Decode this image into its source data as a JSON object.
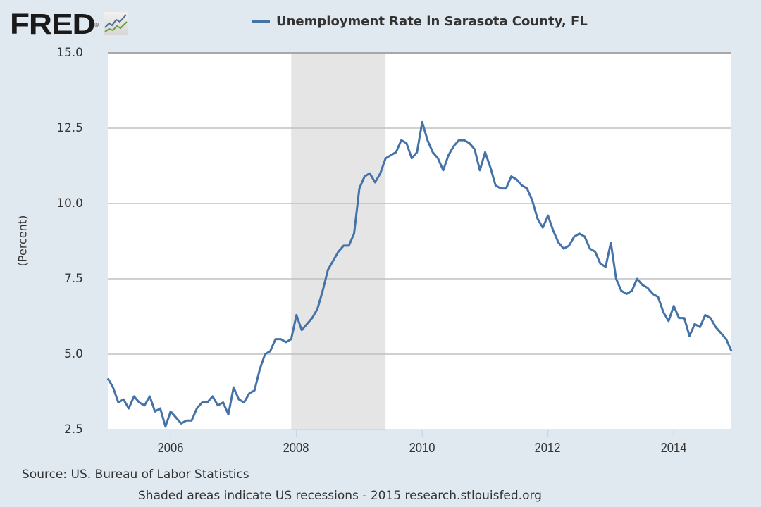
{
  "header": {
    "logo_text": "FRED",
    "logo_icon": "chart-line-icon",
    "legend_label": "Unemployment Rate in Sarasota County, FL",
    "legend_color": "#4572a7"
  },
  "axes": {
    "ylabel": "(Percent)",
    "yticks": [
      "15.0",
      "12.5",
      "10.0",
      "7.5",
      "5.0",
      "2.5"
    ],
    "xticks": [
      "2006",
      "2008",
      "2010",
      "2012",
      "2014"
    ]
  },
  "footer": {
    "source": "Source: US. Bureau of Labor Statistics",
    "note": "Shaded areas indicate US recessions - 2015 research.stlouisfed.org"
  },
  "colors": {
    "background": "#e1e9f0",
    "plot_background": "#ffffff",
    "line": "#4572a7",
    "recession_shade": "#e5e5e5",
    "gridline": "#c0c0c0"
  },
  "chart_data": {
    "type": "line",
    "title": "Unemployment Rate in Sarasota County, FL",
    "xlabel": "",
    "ylabel": "(Percent)",
    "ylim": [
      2.5,
      15.0
    ],
    "xlim": [
      "2005-01",
      "2014-12"
    ],
    "grid": "horizontal",
    "legend_position": "top",
    "x_tick_labels": [
      "2006",
      "2008",
      "2010",
      "2012",
      "2014"
    ],
    "y_tick_labels": [
      "2.5",
      "5.0",
      "7.5",
      "10.0",
      "12.5",
      "15.0"
    ],
    "recessions": [
      {
        "start": "2007-12",
        "end": "2009-06"
      }
    ],
    "x_start": "2005-01",
    "frequency": "monthly",
    "series": [
      {
        "name": "Unemployment Rate in Sarasota County, FL",
        "values": [
          4.2,
          3.9,
          3.4,
          3.5,
          3.2,
          3.6,
          3.4,
          3.3,
          3.6,
          3.1,
          3.2,
          2.6,
          3.1,
          2.9,
          2.7,
          2.8,
          2.8,
          3.2,
          3.4,
          3.4,
          3.6,
          3.3,
          3.4,
          3.0,
          3.9,
          3.5,
          3.4,
          3.7,
          3.8,
          4.5,
          5.0,
          5.1,
          5.5,
          5.5,
          5.4,
          5.5,
          6.3,
          5.8,
          6.0,
          6.2,
          6.5,
          7.1,
          7.8,
          8.1,
          8.4,
          8.6,
          8.6,
          9.0,
          10.5,
          10.9,
          11.0,
          10.7,
          11.0,
          11.5,
          11.6,
          11.7,
          12.1,
          12.0,
          11.5,
          11.7,
          12.7,
          12.1,
          11.7,
          11.5,
          11.1,
          11.6,
          11.9,
          12.1,
          12.1,
          12.0,
          11.8,
          11.1,
          11.7,
          11.2,
          10.6,
          10.5,
          10.5,
          10.9,
          10.8,
          10.6,
          10.5,
          10.1,
          9.5,
          9.2,
          9.6,
          9.1,
          8.7,
          8.5,
          8.6,
          8.9,
          9.0,
          8.9,
          8.5,
          8.4,
          8.0,
          7.9,
          8.7,
          7.5,
          7.1,
          7.0,
          7.1,
          7.5,
          7.3,
          7.2,
          7.0,
          6.9,
          6.4,
          6.1,
          6.6,
          6.2,
          6.2,
          5.6,
          6.0,
          5.9,
          6.3,
          6.2,
          5.9,
          5.7,
          5.5,
          5.1
        ]
      }
    ]
  }
}
